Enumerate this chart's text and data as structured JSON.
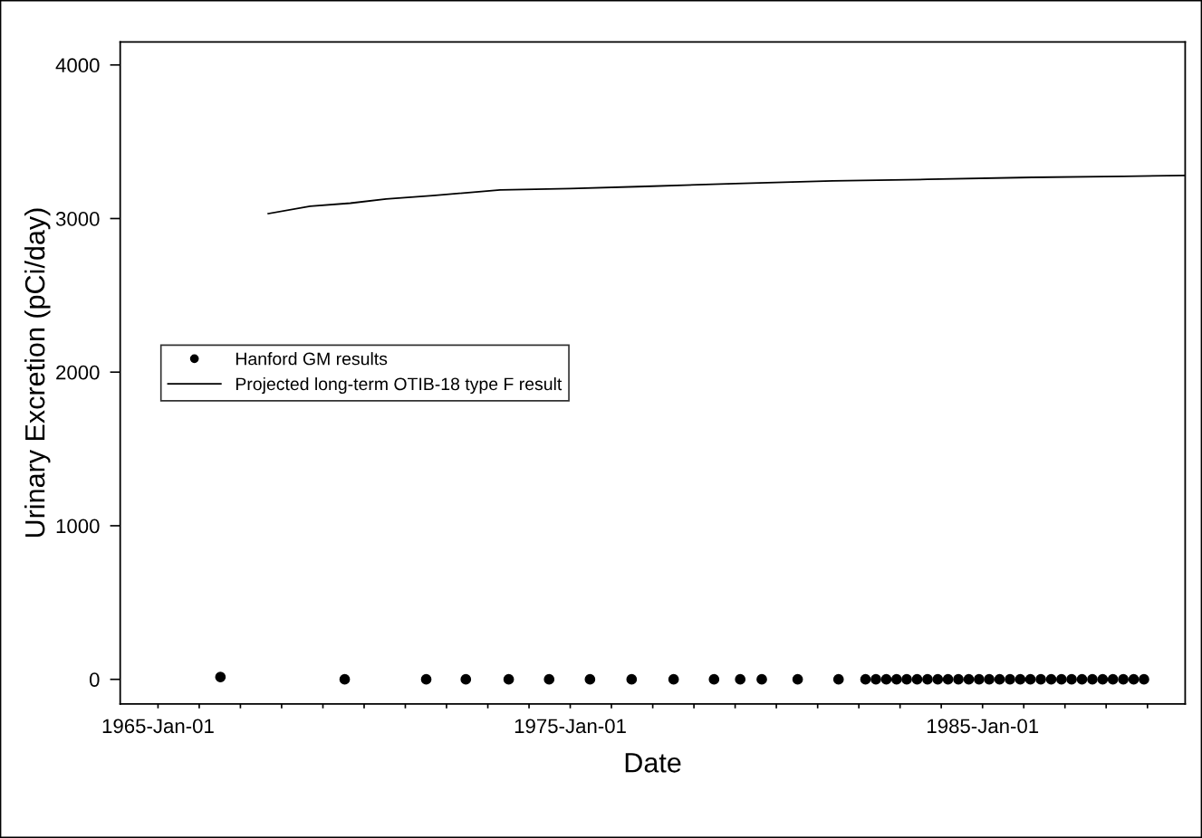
{
  "chart_data": {
    "type": "scatter",
    "xlabel": "Date",
    "ylabel": "Urinary Excretion (pCi/day)",
    "xlim": [
      "1964-02-01",
      "1989-12-01"
    ],
    "xticks": [
      {
        "value": "1965-01-01",
        "label": "1965-Jan-01"
      },
      {
        "value": "1966-01-01",
        "label": null
      },
      {
        "value": "1967-01-01",
        "label": null
      },
      {
        "value": "1968-01-01",
        "label": null
      },
      {
        "value": "1969-01-01",
        "label": null
      },
      {
        "value": "1970-01-01",
        "label": null
      },
      {
        "value": "1971-01-01",
        "label": null
      },
      {
        "value": "1972-01-01",
        "label": null
      },
      {
        "value": "1973-01-01",
        "label": null
      },
      {
        "value": "1974-01-01",
        "label": null
      },
      {
        "value": "1975-01-01",
        "label": "1975-Jan-01"
      },
      {
        "value": "1976-01-01",
        "label": null
      },
      {
        "value": "1977-01-01",
        "label": null
      },
      {
        "value": "1978-01-01",
        "label": null
      },
      {
        "value": "1979-01-01",
        "label": null
      },
      {
        "value": "1980-01-01",
        "label": null
      },
      {
        "value": "1981-01-01",
        "label": null
      },
      {
        "value": "1982-01-01",
        "label": null
      },
      {
        "value": "1983-01-01",
        "label": null
      },
      {
        "value": "1984-01-01",
        "label": null
      },
      {
        "value": "1985-01-01",
        "label": "1985-Jan-01"
      },
      {
        "value": "1986-01-01",
        "label": null
      },
      {
        "value": "1987-01-01",
        "label": null
      },
      {
        "value": "1988-01-01",
        "label": null
      },
      {
        "value": "1989-01-01",
        "label": null
      }
    ],
    "ylim": [
      -160,
      4150
    ],
    "yticks": [
      0,
      1000,
      2000,
      3000,
      4000
    ],
    "grid": false,
    "legend": "center left",
    "series": [
      {
        "name": "Hanford GM results",
        "marker": "circle",
        "color": "#000000",
        "x": [
          "1966-07-08",
          "1969-07-13",
          "1971-07-05",
          "1972-06-20",
          "1973-07-05",
          "1974-06-28",
          "1975-06-25",
          "1976-06-28",
          "1977-07-05",
          "1978-06-28",
          "1979-02-15",
          "1979-08-25",
          "1980-07-08",
          "1981-07-05",
          "1982-03-01",
          "1982-06-01",
          "1982-09-01",
          "1982-12-01",
          "1983-03-01",
          "1983-06-01",
          "1983-09-01",
          "1983-12-01",
          "1984-03-01",
          "1984-06-01",
          "1984-09-01",
          "1984-12-01",
          "1985-03-01",
          "1985-06-01",
          "1985-09-01",
          "1985-12-01",
          "1986-03-01",
          "1986-06-01",
          "1986-09-01",
          "1986-12-01",
          "1987-03-01",
          "1987-06-01",
          "1987-09-01",
          "1987-12-01",
          "1988-03-01",
          "1988-06-01",
          "1988-09-01",
          "1988-12-01"
        ],
        "values": [
          15,
          0,
          0,
          0,
          0,
          0,
          0,
          0,
          0,
          0,
          0,
          0,
          0,
          0,
          0,
          0,
          0,
          0,
          0,
          0,
          0,
          0,
          0,
          0,
          0,
          0,
          0,
          0,
          0,
          0,
          0,
          0,
          0,
          0,
          0,
          0,
          0,
          0,
          0,
          0,
          0,
          0
        ]
      },
      {
        "name": "Projected long-term OTIB-18 type F result",
        "type": "line",
        "marker": "none",
        "line_style": "solid",
        "color": "#000000",
        "x": [
          "1967-09-05",
          "1968-09-10",
          "1969-09-01",
          "1970-07-15",
          "1971-09-01",
          "1973-04-20",
          "1975-01-01",
          "1976-10-25",
          "1979-01-01",
          "1981-05-15",
          "1983-09-01",
          "1986-03-15",
          "1988-06-01",
          "1989-12-01"
        ],
        "values": [
          3032,
          3080,
          3100,
          3127,
          3150,
          3186,
          3195,
          3209,
          3228,
          3245,
          3255,
          3268,
          3275,
          3280
        ]
      }
    ]
  }
}
